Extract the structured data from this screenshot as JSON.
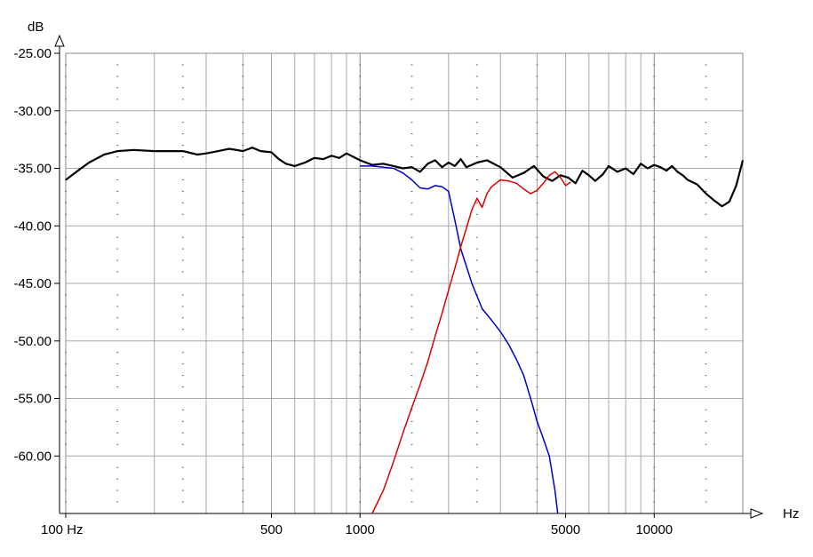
{
  "chart_data": {
    "type": "line",
    "xscale": "log",
    "xlim": [
      100,
      20000
    ],
    "ylim": [
      -65,
      -25
    ],
    "grid": true,
    "ylabel_unit": "dB",
    "xlabel_unit": "Hz",
    "y_ticks": [
      {
        "value": -25,
        "label": "-25.00"
      },
      {
        "value": -30,
        "label": "-30.00"
      },
      {
        "value": -35,
        "label": "-35.00"
      },
      {
        "value": -40,
        "label": "-40.00"
      },
      {
        "value": -45,
        "label": "-45.00"
      },
      {
        "value": -50,
        "label": "-50.00"
      },
      {
        "value": -55,
        "label": "-55.00"
      },
      {
        "value": -60,
        "label": "-60.00"
      }
    ],
    "x_ticks": [
      {
        "value": 100,
        "label": "100 Hz"
      },
      {
        "value": 500,
        "label": "500"
      },
      {
        "value": 1000,
        "label": "1000"
      },
      {
        "value": 5000,
        "label": "5000"
      },
      {
        "value": 10000,
        "label": "10000"
      }
    ],
    "series": [
      {
        "color": "#000000",
        "width": 2.2,
        "points": [
          [
            100,
            -36.0
          ],
          [
            110,
            -35.2
          ],
          [
            120,
            -34.5
          ],
          [
            135,
            -33.8
          ],
          [
            150,
            -33.5
          ],
          [
            170,
            -33.4
          ],
          [
            200,
            -33.5
          ],
          [
            250,
            -33.5
          ],
          [
            280,
            -33.8
          ],
          [
            300,
            -33.7
          ],
          [
            330,
            -33.5
          ],
          [
            360,
            -33.3
          ],
          [
            400,
            -33.5
          ],
          [
            430,
            -33.2
          ],
          [
            460,
            -33.5
          ],
          [
            500,
            -33.6
          ],
          [
            530,
            -34.2
          ],
          [
            560,
            -34.6
          ],
          [
            600,
            -34.8
          ],
          [
            650,
            -34.5
          ],
          [
            700,
            -34.1
          ],
          [
            750,
            -34.2
          ],
          [
            800,
            -33.9
          ],
          [
            850,
            -34.1
          ],
          [
            900,
            -33.7
          ],
          [
            950,
            -34.0
          ],
          [
            1000,
            -34.3
          ],
          [
            1100,
            -34.7
          ],
          [
            1200,
            -34.6
          ],
          [
            1300,
            -34.8
          ],
          [
            1400,
            -35.0
          ],
          [
            1500,
            -34.9
          ],
          [
            1600,
            -35.3
          ],
          [
            1700,
            -34.6
          ],
          [
            1800,
            -34.3
          ],
          [
            1900,
            -34.9
          ],
          [
            2000,
            -34.5
          ],
          [
            2100,
            -34.8
          ],
          [
            2200,
            -34.2
          ],
          [
            2300,
            -34.9
          ],
          [
            2500,
            -34.5
          ],
          [
            2700,
            -34.3
          ],
          [
            3000,
            -34.9
          ],
          [
            3300,
            -35.8
          ],
          [
            3600,
            -35.4
          ],
          [
            3900,
            -34.8
          ],
          [
            4200,
            -35.7
          ],
          [
            4500,
            -36.1
          ],
          [
            4800,
            -35.6
          ],
          [
            5100,
            -35.8
          ],
          [
            5400,
            -36.3
          ],
          [
            5700,
            -35.2
          ],
          [
            6000,
            -35.6
          ],
          [
            6300,
            -36.1
          ],
          [
            6700,
            -35.5
          ],
          [
            7000,
            -34.8
          ],
          [
            7500,
            -35.3
          ],
          [
            8000,
            -35.0
          ],
          [
            8500,
            -35.5
          ],
          [
            9000,
            -34.6
          ],
          [
            9500,
            -35.0
          ],
          [
            10000,
            -34.7
          ],
          [
            10500,
            -34.9
          ],
          [
            11000,
            -35.2
          ],
          [
            11500,
            -34.8
          ],
          [
            12000,
            -35.3
          ],
          [
            12500,
            -35.6
          ],
          [
            13000,
            -36.0
          ],
          [
            14000,
            -36.4
          ],
          [
            15000,
            -37.2
          ],
          [
            16000,
            -37.8
          ],
          [
            17000,
            -38.3
          ],
          [
            18000,
            -37.9
          ],
          [
            19000,
            -36.5
          ],
          [
            20000,
            -34.3
          ]
        ]
      },
      {
        "color": "#0000cc",
        "width": 1.5,
        "points": [
          [
            1000,
            -34.8
          ],
          [
            1100,
            -34.8
          ],
          [
            1200,
            -34.9
          ],
          [
            1300,
            -35.0
          ],
          [
            1400,
            -35.4
          ],
          [
            1500,
            -36.0
          ],
          [
            1600,
            -36.7
          ],
          [
            1700,
            -36.8
          ],
          [
            1800,
            -36.5
          ],
          [
            1900,
            -36.6
          ],
          [
            2000,
            -37.0
          ],
          [
            2100,
            -39.5
          ],
          [
            2200,
            -42.0
          ],
          [
            2400,
            -45.0
          ],
          [
            2600,
            -47.2
          ],
          [
            2800,
            -48.2
          ],
          [
            3000,
            -49.2
          ],
          [
            3200,
            -50.3
          ],
          [
            3400,
            -51.6
          ],
          [
            3600,
            -53.0
          ],
          [
            3800,
            -55.0
          ],
          [
            4000,
            -57.0
          ],
          [
            4200,
            -58.5
          ],
          [
            4400,
            -60.0
          ],
          [
            4600,
            -63.0
          ],
          [
            4700,
            -65.0
          ]
        ]
      },
      {
        "color": "#dd0000",
        "width": 1.5,
        "points": [
          [
            1100,
            -65.0
          ],
          [
            1200,
            -63.0
          ],
          [
            1300,
            -60.5
          ],
          [
            1400,
            -58.0
          ],
          [
            1500,
            -55.8
          ],
          [
            1600,
            -53.8
          ],
          [
            1700,
            -51.8
          ],
          [
            1800,
            -49.6
          ],
          [
            1900,
            -47.6
          ],
          [
            2000,
            -45.6
          ],
          [
            2100,
            -43.7
          ],
          [
            2200,
            -41.8
          ],
          [
            2300,
            -40.2
          ],
          [
            2400,
            -38.6
          ],
          [
            2500,
            -37.6
          ],
          [
            2600,
            -38.4
          ],
          [
            2700,
            -37.2
          ],
          [
            2800,
            -36.6
          ],
          [
            3000,
            -36.0
          ],
          [
            3200,
            -36.1
          ],
          [
            3400,
            -36.3
          ],
          [
            3600,
            -36.8
          ],
          [
            3800,
            -37.2
          ],
          [
            4000,
            -36.9
          ],
          [
            4200,
            -36.3
          ],
          [
            4400,
            -35.6
          ],
          [
            4600,
            -35.3
          ],
          [
            4800,
            -35.8
          ],
          [
            5000,
            -36.5
          ],
          [
            5200,
            -36.2
          ]
        ]
      }
    ]
  }
}
